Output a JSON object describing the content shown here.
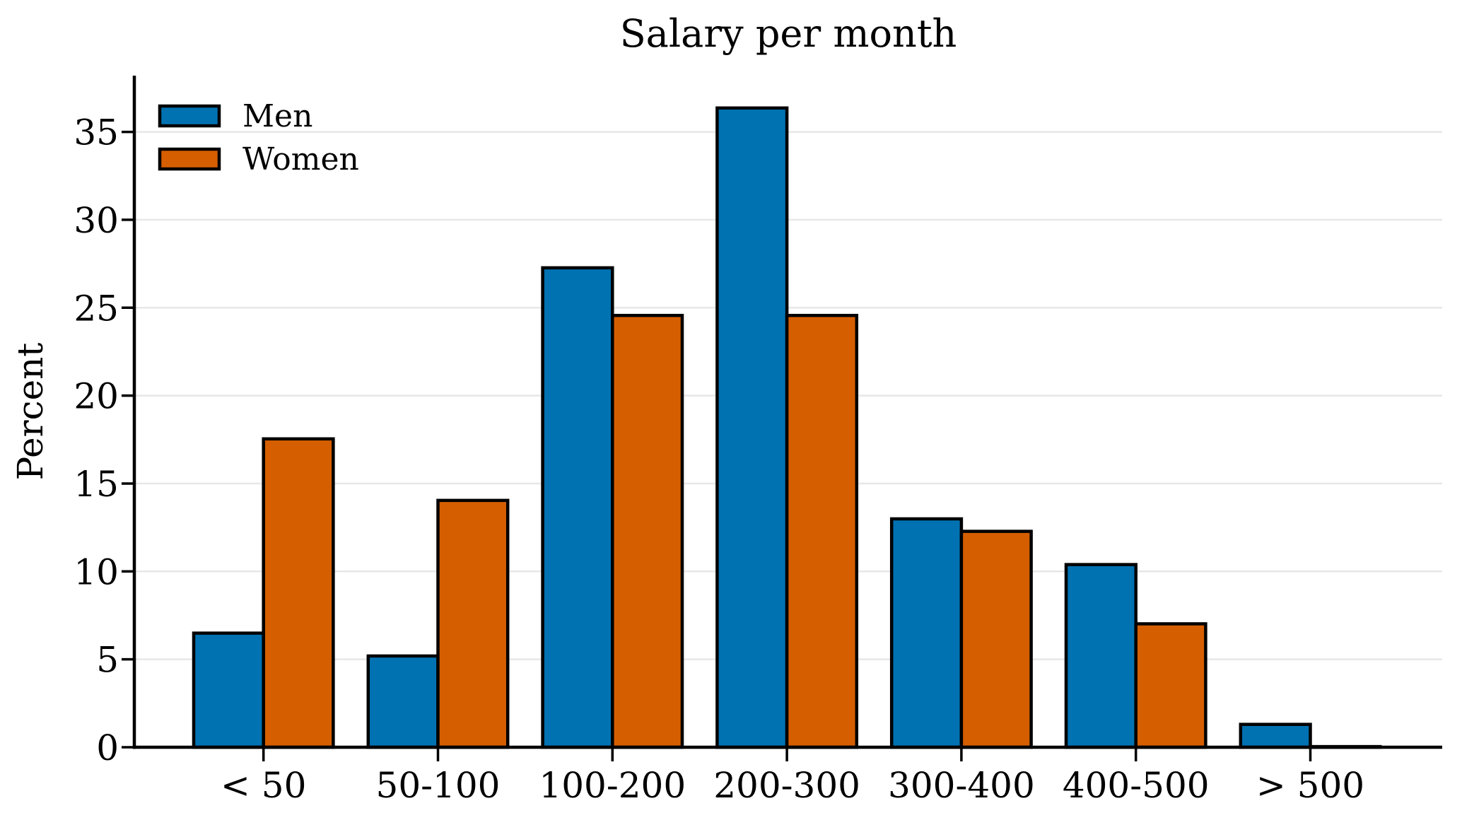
{
  "chart_data": {
    "type": "bar",
    "title": "Salary per month",
    "xlabel": "",
    "ylabel": "Percent",
    "categories": [
      "< 50",
      "50-100",
      "100-200",
      "200-300",
      "300-400",
      "400-500",
      "> 500"
    ],
    "series": [
      {
        "name": "Men",
        "color": "#0072B2",
        "values": [
          6.49,
          5.19,
          27.27,
          36.36,
          12.99,
          10.39,
          1.3
        ]
      },
      {
        "name": "Women",
        "color": "#D55E00",
        "values": [
          17.54,
          14.04,
          24.56,
          24.56,
          12.28,
          7.02,
          0.0
        ]
      }
    ],
    "ylim": [
      0,
      38.2
    ],
    "yticks": [
      0,
      5,
      10,
      15,
      20,
      25,
      30,
      35
    ],
    "grid": true,
    "grid_color": "#e7e7e7",
    "bar_edge_color": "#000000",
    "axis_color": "#000000",
    "legend_position": "upper left"
  }
}
